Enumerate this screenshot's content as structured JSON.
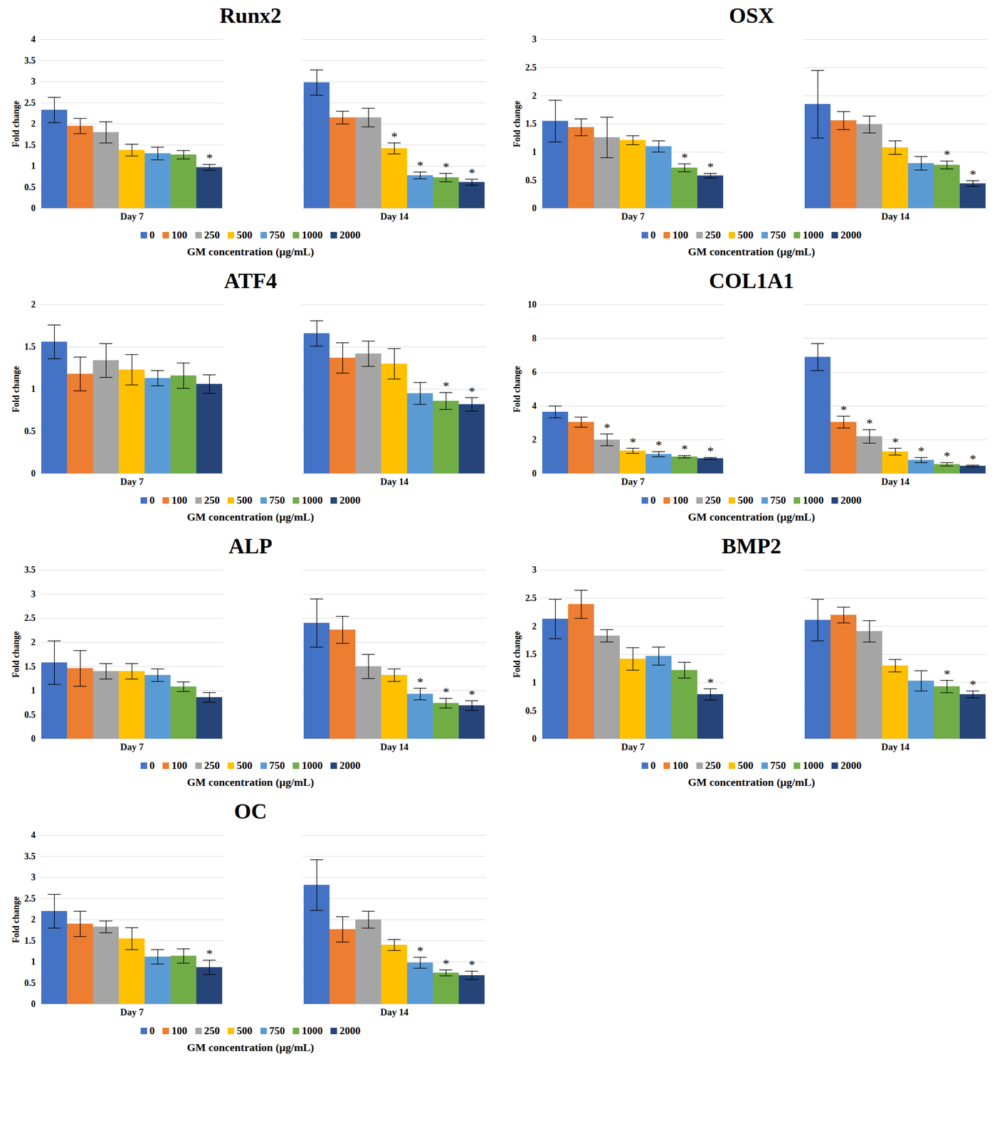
{
  "chart_data": [
    {
      "type": "bar",
      "title": "Runx2",
      "categories": [
        "Day 7",
        "Day 14"
      ],
      "ylabel": "Fold change",
      "xlabel": "GM concentration (μg/mL)",
      "ylim": [
        0,
        4
      ],
      "yticks": [
        0,
        0.5,
        1,
        1.5,
        2,
        2.5,
        3,
        3.5,
        4
      ],
      "grid": true,
      "legend": "bottom",
      "series": [
        {
          "name": "0",
          "color": "#4472c4",
          "values": [
            2.33,
            2.98
          ],
          "errors": [
            0.3,
            0.3
          ],
          "significance": [
            null,
            null
          ]
        },
        {
          "name": "100",
          "color": "#ed7d31",
          "values": [
            1.95,
            2.15
          ],
          "errors": [
            0.18,
            0.15
          ],
          "significance": [
            null,
            null
          ]
        },
        {
          "name": "250",
          "color": "#a5a5a5",
          "values": [
            1.8,
            2.15
          ],
          "errors": [
            0.25,
            0.22
          ],
          "significance": [
            null,
            null
          ]
        },
        {
          "name": "500",
          "color": "#ffc000",
          "values": [
            1.38,
            1.42
          ],
          "errors": [
            0.14,
            0.13
          ],
          "significance": [
            null,
            "*"
          ]
        },
        {
          "name": "750",
          "color": "#5b9bd5",
          "values": [
            1.3,
            0.78
          ],
          "errors": [
            0.15,
            0.08
          ],
          "significance": [
            null,
            "*"
          ]
        },
        {
          "name": "1000",
          "color": "#70ad47",
          "values": [
            1.27,
            0.73
          ],
          "errors": [
            0.1,
            0.1
          ],
          "significance": [
            null,
            "*"
          ]
        },
        {
          "name": "2000",
          "color": "#264478",
          "values": [
            0.97,
            0.62
          ],
          "errors": [
            0.07,
            0.07
          ],
          "significance": [
            "*",
            "*"
          ]
        }
      ]
    },
    {
      "type": "bar",
      "title": "OSX",
      "categories": [
        "Day 7",
        "Day 14"
      ],
      "ylabel": "Fold change",
      "xlabel": "GM concentration (μg/mL)",
      "ylim": [
        0,
        3
      ],
      "yticks": [
        0,
        0.5,
        1,
        1.5,
        2,
        2.5,
        3
      ],
      "grid": true,
      "legend": "bottom",
      "series": [
        {
          "name": "0",
          "color": "#4472c4",
          "values": [
            1.55,
            1.85
          ],
          "errors": [
            0.37,
            0.6
          ],
          "significance": [
            null,
            null
          ]
        },
        {
          "name": "100",
          "color": "#ed7d31",
          "values": [
            1.44,
            1.56
          ],
          "errors": [
            0.15,
            0.16
          ],
          "significance": [
            null,
            null
          ]
        },
        {
          "name": "250",
          "color": "#a5a5a5",
          "values": [
            1.26,
            1.49
          ],
          "errors": [
            0.36,
            0.15
          ],
          "significance": [
            null,
            null
          ]
        },
        {
          "name": "500",
          "color": "#ffc000",
          "values": [
            1.21,
            1.08
          ],
          "errors": [
            0.08,
            0.12
          ],
          "significance": [
            null,
            null
          ]
        },
        {
          "name": "750",
          "color": "#5b9bd5",
          "values": [
            1.1,
            0.8
          ],
          "errors": [
            0.1,
            0.12
          ],
          "significance": [
            null,
            null
          ]
        },
        {
          "name": "1000",
          "color": "#70ad47",
          "values": [
            0.72,
            0.77
          ],
          "errors": [
            0.07,
            0.07
          ],
          "significance": [
            "*",
            "*"
          ]
        },
        {
          "name": "2000",
          "color": "#264478",
          "values": [
            0.58,
            0.44
          ],
          "errors": [
            0.04,
            0.05
          ],
          "significance": [
            "*",
            "*"
          ]
        }
      ]
    },
    {
      "type": "bar",
      "title": "ATF4",
      "categories": [
        "Day 7",
        "Day 14"
      ],
      "ylabel": "Fold change",
      "xlabel": "GM concentration (μg/mL)",
      "ylim": [
        0,
        2
      ],
      "yticks": [
        0,
        0.5,
        1,
        1.5,
        2
      ],
      "grid": true,
      "legend": "bottom",
      "series": [
        {
          "name": "0",
          "color": "#4472c4",
          "values": [
            1.56,
            1.66
          ],
          "errors": [
            0.2,
            0.15
          ],
          "significance": [
            null,
            null
          ]
        },
        {
          "name": "100",
          "color": "#ed7d31",
          "values": [
            1.18,
            1.37
          ],
          "errors": [
            0.2,
            0.18
          ],
          "significance": [
            null,
            null
          ]
        },
        {
          "name": "250",
          "color": "#a5a5a5",
          "values": [
            1.34,
            1.42
          ],
          "errors": [
            0.2,
            0.15
          ],
          "significance": [
            null,
            null
          ]
        },
        {
          "name": "500",
          "color": "#ffc000",
          "values": [
            1.23,
            1.3
          ],
          "errors": [
            0.18,
            0.18
          ],
          "significance": [
            null,
            null
          ]
        },
        {
          "name": "750",
          "color": "#5b9bd5",
          "values": [
            1.13,
            0.95
          ],
          "errors": [
            0.09,
            0.13
          ],
          "significance": [
            null,
            null
          ]
        },
        {
          "name": "1000",
          "color": "#70ad47",
          "values": [
            1.16,
            0.86
          ],
          "errors": [
            0.15,
            0.1
          ],
          "significance": [
            null,
            "*"
          ]
        },
        {
          "name": "2000",
          "color": "#264478",
          "values": [
            1.06,
            0.82
          ],
          "errors": [
            0.11,
            0.08
          ],
          "significance": [
            null,
            "*"
          ]
        }
      ]
    },
    {
      "type": "bar",
      "title": "COL1A1",
      "categories": [
        "Day 7",
        "Day 14"
      ],
      "ylabel": "Fold change",
      "xlabel": "GM concentration (μg/mL)",
      "ylim": [
        0,
        10
      ],
      "yticks": [
        0,
        2,
        4,
        6,
        8,
        10
      ],
      "grid": true,
      "legend": "bottom",
      "series": [
        {
          "name": "0",
          "color": "#4472c4",
          "values": [
            3.65,
            6.9
          ],
          "errors": [
            0.35,
            0.8
          ],
          "significance": [
            null,
            null
          ]
        },
        {
          "name": "100",
          "color": "#ed7d31",
          "values": [
            3.05,
            3.05
          ],
          "errors": [
            0.3,
            0.35
          ],
          "significance": [
            null,
            "*"
          ]
        },
        {
          "name": "250",
          "color": "#a5a5a5",
          "values": [
            2.0,
            2.2
          ],
          "errors": [
            0.35,
            0.4
          ],
          "significance": [
            "*",
            "*"
          ]
        },
        {
          "name": "500",
          "color": "#ffc000",
          "values": [
            1.35,
            1.3
          ],
          "errors": [
            0.15,
            0.2
          ],
          "significance": [
            "*",
            "*"
          ]
        },
        {
          "name": "750",
          "color": "#5b9bd5",
          "values": [
            1.15,
            0.8
          ],
          "errors": [
            0.15,
            0.15
          ],
          "significance": [
            "*",
            "*"
          ]
        },
        {
          "name": "1000",
          "color": "#70ad47",
          "values": [
            1.0,
            0.55
          ],
          "errors": [
            0.07,
            0.1
          ],
          "significance": [
            "*",
            "*"
          ]
        },
        {
          "name": "2000",
          "color": "#264478",
          "values": [
            0.9,
            0.45
          ],
          "errors": [
            0.05,
            0.05
          ],
          "significance": [
            "*",
            "*"
          ]
        }
      ]
    },
    {
      "type": "bar",
      "title": "ALP",
      "categories": [
        "Day 7",
        "Day 14"
      ],
      "ylabel": "Fold change",
      "xlabel": "GM concentration (μg/mL)",
      "ylim": [
        0,
        3.5
      ],
      "yticks": [
        0,
        0.5,
        1,
        1.5,
        2,
        2.5,
        3,
        3.5
      ],
      "grid": true,
      "legend": "bottom",
      "series": [
        {
          "name": "0",
          "color": "#4472c4",
          "values": [
            1.58,
            2.4
          ],
          "errors": [
            0.45,
            0.5
          ],
          "significance": [
            null,
            null
          ]
        },
        {
          "name": "100",
          "color": "#ed7d31",
          "values": [
            1.46,
            2.26
          ],
          "errors": [
            0.37,
            0.28
          ],
          "significance": [
            null,
            null
          ]
        },
        {
          "name": "250",
          "color": "#a5a5a5",
          "values": [
            1.4,
            1.5
          ],
          "errors": [
            0.16,
            0.25
          ],
          "significance": [
            null,
            null
          ]
        },
        {
          "name": "500",
          "color": "#ffc000",
          "values": [
            1.4,
            1.32
          ],
          "errors": [
            0.16,
            0.13
          ],
          "significance": [
            null,
            null
          ]
        },
        {
          "name": "750",
          "color": "#5b9bd5",
          "values": [
            1.32,
            0.93
          ],
          "errors": [
            0.13,
            0.12
          ],
          "significance": [
            null,
            "*"
          ]
        },
        {
          "name": "1000",
          "color": "#70ad47",
          "values": [
            1.08,
            0.74
          ],
          "errors": [
            0.1,
            0.1
          ],
          "significance": [
            null,
            "*"
          ]
        },
        {
          "name": "2000",
          "color": "#264478",
          "values": [
            0.86,
            0.69
          ],
          "errors": [
            0.1,
            0.1
          ],
          "significance": [
            null,
            "*"
          ]
        }
      ]
    },
    {
      "type": "bar",
      "title": "BMP2",
      "categories": [
        "Day 7",
        "Day 14"
      ],
      "ylabel": "Fold change",
      "xlabel": "GM concentration (μg/mL)",
      "ylim": [
        0,
        3
      ],
      "yticks": [
        0,
        0.5,
        1,
        1.5,
        2,
        2.5,
        3
      ],
      "grid": true,
      "legend": "bottom",
      "series": [
        {
          "name": "0",
          "color": "#4472c4",
          "values": [
            2.13,
            2.11
          ],
          "errors": [
            0.35,
            0.37
          ],
          "significance": [
            null,
            null
          ]
        },
        {
          "name": "100",
          "color": "#ed7d31",
          "values": [
            2.39,
            2.2
          ],
          "errors": [
            0.25,
            0.14
          ],
          "significance": [
            null,
            null
          ]
        },
        {
          "name": "250",
          "color": "#a5a5a5",
          "values": [
            1.83,
            1.91
          ],
          "errors": [
            0.11,
            0.19
          ],
          "significance": [
            null,
            null
          ]
        },
        {
          "name": "500",
          "color": "#ffc000",
          "values": [
            1.42,
            1.3
          ],
          "errors": [
            0.2,
            0.11
          ],
          "significance": [
            null,
            null
          ]
        },
        {
          "name": "750",
          "color": "#5b9bd5",
          "values": [
            1.47,
            1.03
          ],
          "errors": [
            0.16,
            0.18
          ],
          "significance": [
            null,
            null
          ]
        },
        {
          "name": "1000",
          "color": "#70ad47",
          "values": [
            1.22,
            0.93
          ],
          "errors": [
            0.14,
            0.11
          ],
          "significance": [
            null,
            "*"
          ]
        },
        {
          "name": "2000",
          "color": "#264478",
          "values": [
            0.79,
            0.79
          ],
          "errors": [
            0.1,
            0.06
          ],
          "significance": [
            "*",
            "*"
          ]
        }
      ]
    },
    {
      "type": "bar",
      "title": "OC",
      "categories": [
        "Day 7",
        "Day 14"
      ],
      "ylabel": "Fold change",
      "xlabel": "GM concentration (μg/mL)",
      "ylim": [
        0,
        4
      ],
      "yticks": [
        0,
        0.5,
        1,
        1.5,
        2,
        2.5,
        3,
        3.5,
        4
      ],
      "grid": true,
      "legend": "bottom",
      "series": [
        {
          "name": "0",
          "color": "#4472c4",
          "values": [
            2.2,
            2.82
          ],
          "errors": [
            0.4,
            0.6
          ],
          "significance": [
            null,
            null
          ]
        },
        {
          "name": "100",
          "color": "#ed7d31",
          "values": [
            1.9,
            1.77
          ],
          "errors": [
            0.3,
            0.3
          ],
          "significance": [
            null,
            null
          ]
        },
        {
          "name": "250",
          "color": "#a5a5a5",
          "values": [
            1.83,
            2.0
          ],
          "errors": [
            0.14,
            0.2
          ],
          "significance": [
            null,
            null
          ]
        },
        {
          "name": "500",
          "color": "#ffc000",
          "values": [
            1.55,
            1.4
          ],
          "errors": [
            0.26,
            0.13
          ],
          "significance": [
            null,
            null
          ]
        },
        {
          "name": "750",
          "color": "#5b9bd5",
          "values": [
            1.12,
            0.98
          ],
          "errors": [
            0.17,
            0.13
          ],
          "significance": [
            null,
            "*"
          ]
        },
        {
          "name": "1000",
          "color": "#70ad47",
          "values": [
            1.14,
            0.74
          ],
          "errors": [
            0.17,
            0.07
          ],
          "significance": [
            null,
            "*"
          ]
        },
        {
          "name": "2000",
          "color": "#264478",
          "values": [
            0.87,
            0.68
          ],
          "errors": [
            0.17,
            0.1
          ],
          "significance": [
            "*",
            "*"
          ]
        }
      ]
    }
  ]
}
